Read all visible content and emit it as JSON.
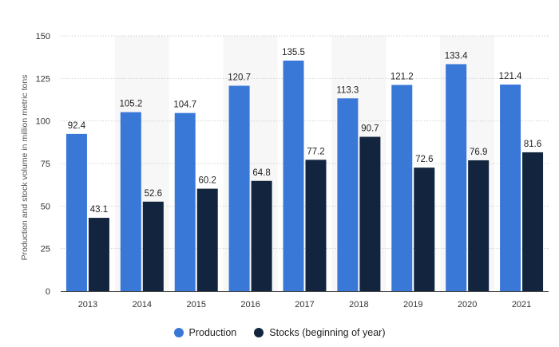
{
  "chart_data": {
    "type": "bar",
    "ylabel": "Production and stock volume in million metric tons",
    "categories": [
      "2013",
      "2014",
      "2015",
      "2016",
      "2017",
      "2018",
      "2019",
      "2020",
      "2021"
    ],
    "series": [
      {
        "name": "Production",
        "color": "#3a78d8",
        "values": [
          92.4,
          105.2,
          104.7,
          120.7,
          135.5,
          113.3,
          121.2,
          133.4,
          121.4
        ]
      },
      {
        "name": "Stocks (beginning of year)",
        "color": "#13253e",
        "values": [
          43.1,
          52.6,
          60.2,
          64.8,
          77.2,
          90.7,
          72.6,
          76.9,
          81.6
        ]
      }
    ],
    "ylim": [
      0,
      150
    ],
    "yticks": [
      0,
      25,
      50,
      75,
      100,
      125,
      150
    ],
    "grid": true,
    "legend_position": "bottom"
  }
}
